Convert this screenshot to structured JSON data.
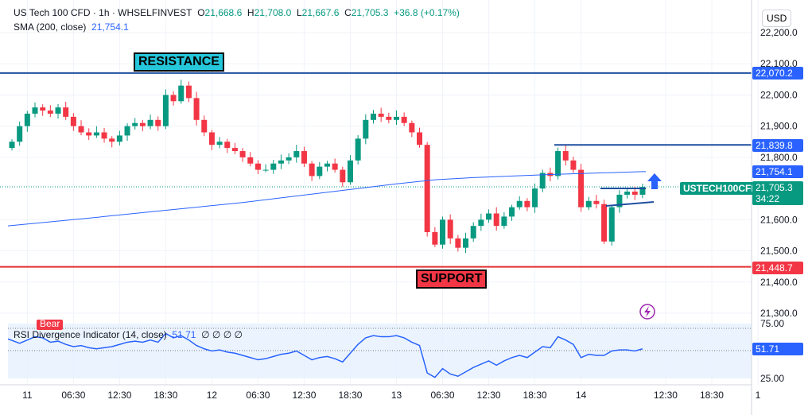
{
  "header": {
    "symbol": "US Tech 100 CFD · 1h · WHSELFINVEST",
    "o_label": "O",
    "o": "21,668.6",
    "h_label": "H",
    "h": "21,708.0",
    "l_label": "L",
    "l": "21,667.6",
    "c_label": "C",
    "c": "21,705.3",
    "change": "+36.8 (+0.17%)",
    "sma_label": "SMA (200, close)",
    "sma_value": "21,754.1"
  },
  "currency": "USD",
  "annotations": {
    "resistance": "RESISTANCE",
    "support": "SUPPORT",
    "bear": "Bear",
    "symbol_tag": "USTECH100CFD",
    "countdown": "34:22"
  },
  "price_tags": {
    "resistance": "22,070.2",
    "level": "21,839.8",
    "sma": "21,754.1",
    "last": "21,705.3",
    "support": "21,448.7",
    "rsi": "51.71"
  },
  "rsi_legend": {
    "label": "RSI Divergence Indicator (14, close)",
    "value": "51.71",
    "extras": "∅  ∅  ∅  ∅"
  },
  "colors": {
    "up": "#089981",
    "down": "#f23645",
    "sma": "#2962ff",
    "resistance": "#1e4fa0",
    "support": "#e03030"
  },
  "chart_data": {
    "type": "candlestick",
    "title": "US Tech 100 CFD · 1h",
    "ylim": [
      21270,
      22230
    ],
    "price_ticks": [
      "22,200.0",
      "22,100.0",
      "22,000.0",
      "21,900.0",
      "21,800.0",
      "21,600.0",
      "21,500.0",
      "21,400.0",
      "21,300.0"
    ],
    "price_tick_values": [
      22200,
      22100,
      22000,
      21900,
      21800,
      21600,
      21500,
      21400,
      21300
    ],
    "time_ticks": [
      "11",
      "06:30",
      "12:30",
      "18:30",
      "12",
      "06:30",
      "12:30",
      "18:30",
      "13",
      "06:30",
      "12:30",
      "18:30",
      "14",
      "12:30",
      "18:30",
      "1"
    ],
    "time_tick_index": [
      2,
      8,
      14,
      20,
      26,
      32,
      38,
      44,
      50,
      56,
      62,
      68,
      74,
      85,
      91,
      97
    ],
    "closes": [
      21850,
      21900,
      21940,
      21960,
      21950,
      21940,
      21960,
      21930,
      21900,
      21880,
      21870,
      21880,
      21860,
      21850,
      21870,
      21900,
      21910,
      21900,
      21920,
      21900,
      22000,
      21980,
      22030,
      21990,
      21920,
      21880,
      21840,
      21850,
      21830,
      21820,
      21800,
      21780,
      21760,
      21760,
      21780,
      21790,
      21800,
      21820,
      21780,
      21740,
      21770,
      21780,
      21760,
      21720,
      21790,
      21860,
      21920,
      21940,
      21930,
      21920,
      21930,
      21910,
      21880,
      21840,
      21560,
      21520,
      21600,
      21540,
      21510,
      21540,
      21580,
      21600,
      21620,
      21580,
      21610,
      21640,
      21660,
      21640,
      21700,
      21750,
      21740,
      21820,
      21790,
      21760,
      21640,
      21660,
      21650,
      21530,
      21640,
      21680,
      21690,
      21680,
      21705
    ],
    "sma_index": [
      0,
      10,
      20,
      30,
      40,
      50,
      55,
      60,
      70,
      82
    ],
    "sma_values": [
      21580,
      21605,
      21630,
      21655,
      21685,
      21715,
      21728,
      21735,
      21745,
      21754
    ],
    "levels": {
      "resistance": 22070.2,
      "support": 21448.7,
      "level": 21839.8,
      "last": 21705.3
    },
    "rsi": {
      "ylim": [
        25,
        75
      ],
      "ticks": [
        "75.00",
        "25.00"
      ],
      "values": [
        61,
        57,
        60,
        63,
        62,
        58,
        59,
        56,
        54,
        55,
        53,
        52,
        53,
        54,
        56,
        58,
        59,
        58,
        60,
        58,
        66,
        62,
        64,
        60,
        55,
        52,
        50,
        51,
        49,
        48,
        46,
        44,
        42,
        43,
        45,
        47,
        48,
        50,
        46,
        42,
        44,
        45,
        43,
        40,
        48,
        56,
        62,
        64,
        63,
        63,
        64,
        62,
        58,
        55,
        30,
        26,
        34,
        29,
        27,
        31,
        35,
        38,
        41,
        37,
        41,
        44,
        46,
        44,
        49,
        54,
        53,
        63,
        60,
        56,
        44,
        47,
        46,
        46,
        50,
        51,
        51,
        50,
        52
      ]
    }
  }
}
